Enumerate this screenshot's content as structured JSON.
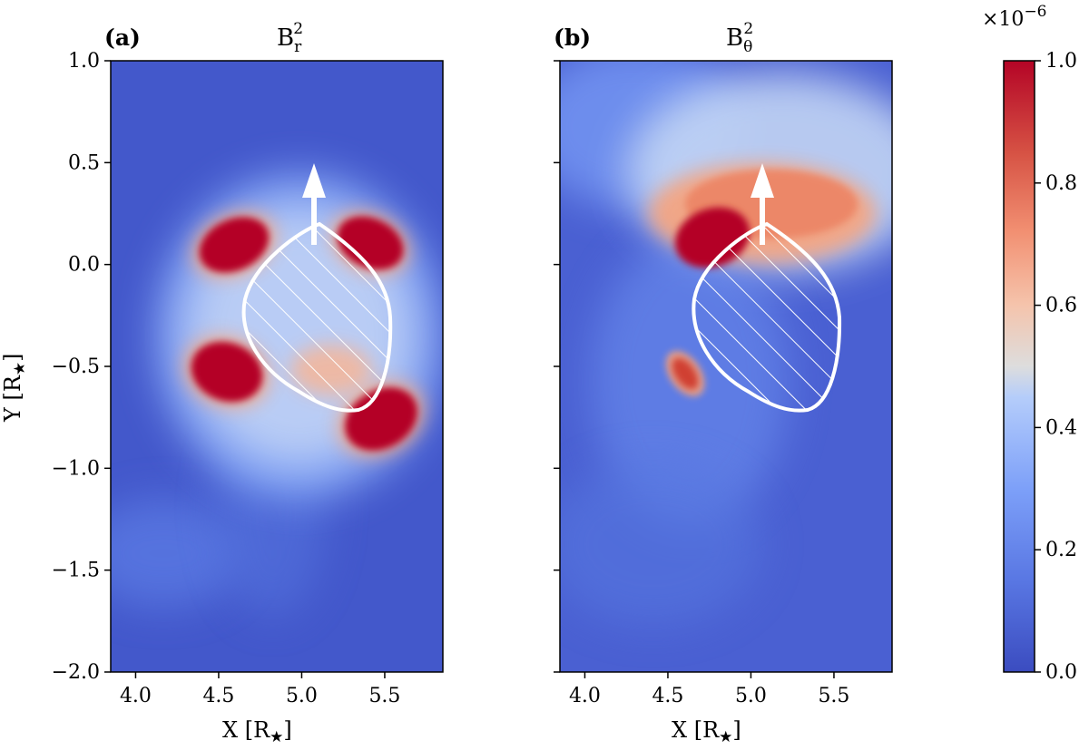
{
  "chart_data": [
    {
      "type": "heatmap",
      "panel_label": "(a)",
      "title_base": "B",
      "title_sub": "r",
      "title_sup": "2",
      "xlabel_base": "X [R",
      "xlabel_star": "★",
      "xlabel_end": "]",
      "ylabel_base": "Y [R",
      "ylabel_star": "★",
      "ylabel_end": "]",
      "xlim": [
        3.85,
        5.85
      ],
      "ylim": [
        -2.0,
        1.0
      ],
      "xticks": [
        4.0,
        4.5,
        5.0,
        5.5
      ],
      "xtick_labels": [
        "4.0",
        "4.5",
        "5.0",
        "5.5"
      ],
      "yticks": [
        1.0,
        0.5,
        0.0,
        -0.5,
        -1.0,
        -1.5,
        -2.0
      ],
      "ytick_labels": [
        "1.0",
        "0.5",
        "0.0",
        "−0.5",
        "−1.0",
        "−1.5",
        "−2.0"
      ],
      "background_level": 0.08,
      "features": [
        {
          "kind": "lobe",
          "x": 4.45,
          "y": 0.05,
          "value": 1.0
        },
        {
          "kind": "lobe",
          "x": 5.15,
          "y": 0.05,
          "value": 1.0
        },
        {
          "kind": "lobe",
          "x": 4.42,
          "y": -0.55,
          "value": 1.0
        },
        {
          "kind": "lobe",
          "x": 5.2,
          "y": -0.78,
          "value": 1.0
        }
      ],
      "obstacle": "hatched region centred near (4.85, -0.3)",
      "arrow": {
        "x": 4.86,
        "y_from": 0.1,
        "y_to": 0.5
      }
    },
    {
      "type": "heatmap",
      "panel_label": "(b)",
      "title_base": "B",
      "title_sub": "θ",
      "title_sup": "2",
      "xlabel_base": "X [R",
      "xlabel_star": "★",
      "xlabel_end": "]",
      "xlim": [
        3.85,
        5.85
      ],
      "ylim": [
        -2.0,
        1.0
      ],
      "xticks": [
        4.0,
        4.5,
        5.0,
        5.5
      ],
      "xtick_labels": [
        "4.0",
        "4.5",
        "5.0",
        "5.5"
      ],
      "background_level": 0.1,
      "features": [
        {
          "kind": "arc",
          "x": 4.95,
          "y": 0.35,
          "value": 0.85
        },
        {
          "kind": "lobe",
          "x": 4.55,
          "y": 0.12,
          "value": 1.0
        },
        {
          "kind": "lobe",
          "x": 4.42,
          "y": -0.55,
          "value": 0.9
        }
      ],
      "obstacle": "hatched region centred near (4.85, -0.3)",
      "arrow": {
        "x": 4.86,
        "y_from": 0.1,
        "y_to": 0.5
      }
    }
  ],
  "colorbar": {
    "multiplier_base": "×10",
    "multiplier_exp": "−6",
    "range": [
      0.0,
      1.0
    ],
    "colormap": "coolwarm",
    "ticks": [
      1.0,
      0.8,
      0.6,
      0.4,
      0.2,
      0.0
    ],
    "tick_labels": [
      "1.0",
      "0.8",
      "0.6",
      "0.4",
      "0.2",
      "0.0"
    ],
    "colors": {
      "low": "#3b4cc0",
      "mid": "#dddddd",
      "high": "#b40426"
    }
  }
}
